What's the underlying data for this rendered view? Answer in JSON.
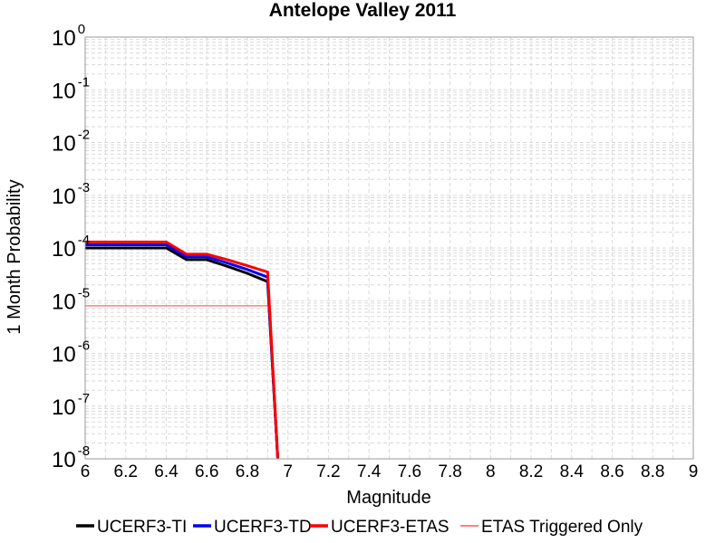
{
  "chart_data": {
    "type": "line",
    "title": "Antelope Valley 2011",
    "xlabel": "Magnitude",
    "ylabel": "1 Month Probability",
    "xlim": [
      6,
      9
    ],
    "ylim": [
      1e-08,
      1
    ],
    "yscale": "log",
    "grid": true,
    "legend_placement": "bottom",
    "xticks": [
      "6",
      "6.2",
      "6.4",
      "6.6",
      "6.8",
      "7",
      "7.2",
      "7.4",
      "7.6",
      "7.8",
      "8",
      "8.2",
      "8.4",
      "8.6",
      "8.8",
      "9"
    ],
    "yticks": [
      {
        "base": "10",
        "exp": "0"
      },
      {
        "base": "10",
        "exp": "-1"
      },
      {
        "base": "10",
        "exp": "-2"
      },
      {
        "base": "10",
        "exp": "-3"
      },
      {
        "base": "10",
        "exp": "-4"
      },
      {
        "base": "10",
        "exp": "-5"
      },
      {
        "base": "10",
        "exp": "-6"
      },
      {
        "base": "10",
        "exp": "-7"
      },
      {
        "base": "10",
        "exp": "-8"
      }
    ],
    "series": [
      {
        "name": "UCERF3-TI",
        "color": "#000000",
        "width": 3,
        "x": [
          6.0,
          6.1,
          6.2,
          6.3,
          6.4,
          6.5,
          6.6,
          6.7,
          6.8,
          6.9,
          6.95
        ],
        "y": [
          0.0001,
          0.0001,
          0.0001,
          0.0001,
          0.0001,
          6e-05,
          6e-05,
          4.5e-05,
          3.3e-05,
          2.3e-05,
          1e-09
        ]
      },
      {
        "name": "UCERF3-TD",
        "color": "#0000ff",
        "width": 3,
        "x": [
          6.0,
          6.1,
          6.2,
          6.3,
          6.4,
          6.5,
          6.6,
          6.7,
          6.8,
          6.9,
          6.95
        ],
        "y": [
          0.000115,
          0.000115,
          0.000115,
          0.000115,
          0.000115,
          6.8e-05,
          6.8e-05,
          5.2e-05,
          3.9e-05,
          2.8e-05,
          1e-09
        ]
      },
      {
        "name": "UCERF3-ETAS",
        "color": "#ff0000",
        "width": 3,
        "x": [
          6.0,
          6.1,
          6.2,
          6.3,
          6.4,
          6.5,
          6.6,
          6.7,
          6.8,
          6.9,
          6.95
        ],
        "y": [
          0.00013,
          0.00013,
          0.00013,
          0.00013,
          0.00013,
          7.6e-05,
          7.6e-05,
          6e-05,
          4.6e-05,
          3.5e-05,
          1e-09
        ]
      },
      {
        "name": "ETAS Triggered Only",
        "color": "#ff8080",
        "width": 1.5,
        "x": [
          6.0,
          6.2,
          6.4,
          6.6,
          6.8,
          6.9
        ],
        "y": [
          8e-06,
          8e-06,
          8e-06,
          8e-06,
          8e-06,
          8e-06
        ]
      }
    ]
  }
}
